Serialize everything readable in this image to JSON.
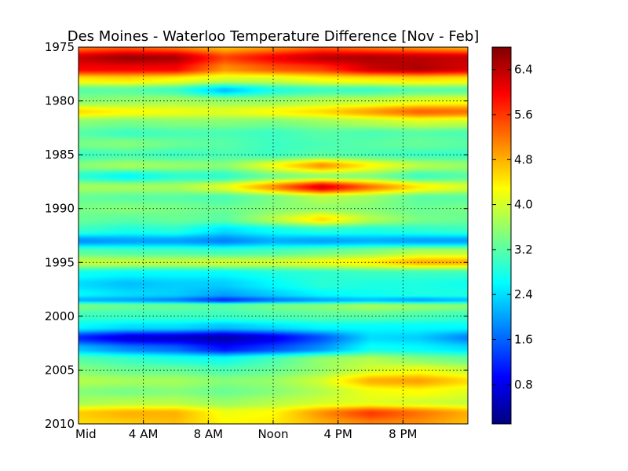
{
  "chart_data": {
    "type": "heatmap",
    "title": "Des Moines - Waterloo Temperature Difference [Nov - Feb]",
    "xlabel": "",
    "ylabel": "",
    "x_ticks": [
      "Mid",
      "4 AM",
      "8 AM",
      "Noon",
      "4 PM",
      "8 PM"
    ],
    "x_tick_hours": [
      0,
      4,
      8,
      12,
      16,
      20
    ],
    "x_range_hours": [
      0,
      24
    ],
    "y_ticks": [
      "1975",
      "1980",
      "1985",
      "1990",
      "1995",
      "2000",
      "2005",
      "2010"
    ],
    "y_range": [
      1975,
      2010
    ],
    "y_inverted": true,
    "grid": true,
    "colormap": "jet",
    "colorbar": {
      "ticks": [
        "0.8",
        "1.6",
        "2.4",
        "3.2",
        "4.0",
        "4.8",
        "5.6",
        "6.4"
      ],
      "range": [
        0.1,
        6.8
      ]
    },
    "colors": [
      "#00007f",
      "#0000ff",
      "#007fff",
      "#00ffff",
      "#7fff7f",
      "#ffff00",
      "#ff7f00",
      "#ff0000",
      "#7f0000"
    ],
    "hour_grid": [
      0,
      3,
      6,
      9,
      12,
      15,
      18,
      21,
      24
    ],
    "rows": [
      {
        "year": 1975.0,
        "values": [
          5.2,
          5.4,
          5.2,
          4.7,
          5.0,
          5.4,
          5.2,
          5.0,
          4.8
        ]
      },
      {
        "year": 1976.0,
        "values": [
          6.3,
          6.6,
          6.5,
          5.5,
          6.0,
          6.4,
          6.5,
          6.4,
          6.3
        ]
      },
      {
        "year": 1977.0,
        "values": [
          6.0,
          6.0,
          6.0,
          5.0,
          5.4,
          5.6,
          6.3,
          6.5,
          6.2
        ]
      },
      {
        "year": 1978.0,
        "values": [
          4.4,
          4.5,
          4.3,
          4.0,
          4.0,
          4.3,
          4.4,
          4.5,
          4.4
        ]
      },
      {
        "year": 1979.0,
        "values": [
          3.2,
          3.2,
          3.0,
          2.2,
          2.8,
          3.0,
          3.0,
          3.2,
          3.2
        ]
      },
      {
        "year": 1980.0,
        "values": [
          3.5,
          3.6,
          3.7,
          3.6,
          3.6,
          3.8,
          3.9,
          4.1,
          4.2
        ]
      },
      {
        "year": 1981.0,
        "values": [
          4.5,
          4.3,
          4.2,
          4.1,
          4.3,
          4.5,
          4.9,
          5.3,
          5.2
        ]
      },
      {
        "year": 1982.0,
        "values": [
          3.5,
          3.4,
          3.5,
          3.5,
          3.4,
          3.6,
          3.8,
          4.0,
          3.9
        ]
      },
      {
        "year": 1983.0,
        "values": [
          3.2,
          3.0,
          3.1,
          3.1,
          3.0,
          3.2,
          3.1,
          3.2,
          3.1
        ]
      },
      {
        "year": 1984.0,
        "values": [
          3.4,
          3.5,
          3.3,
          3.2,
          3.0,
          3.1,
          3.2,
          3.3,
          3.2
        ]
      },
      {
        "year": 1985.0,
        "values": [
          3.0,
          3.1,
          3.0,
          3.1,
          3.0,
          3.2,
          3.1,
          3.0,
          3.0
        ]
      },
      {
        "year": 1986.0,
        "values": [
          3.5,
          3.7,
          3.6,
          3.5,
          4.2,
          5.0,
          4.3,
          3.8,
          3.6
        ]
      },
      {
        "year": 1987.0,
        "values": [
          2.9,
          2.6,
          2.9,
          2.9,
          3.4,
          3.6,
          3.5,
          3.0,
          3.2
        ]
      },
      {
        "year": 1988.0,
        "values": [
          3.7,
          3.7,
          3.7,
          4.1,
          5.0,
          6.2,
          5.2,
          4.4,
          4.0
        ]
      },
      {
        "year": 1989.0,
        "values": [
          3.3,
          3.2,
          3.2,
          3.1,
          3.4,
          3.8,
          3.6,
          3.2,
          3.2
        ]
      },
      {
        "year": 1990.0,
        "values": [
          3.4,
          3.5,
          3.4,
          3.3,
          3.5,
          3.6,
          3.5,
          3.3,
          3.4
        ]
      },
      {
        "year": 1991.0,
        "values": [
          3.3,
          3.2,
          3.3,
          3.2,
          3.8,
          4.5,
          3.8,
          3.4,
          3.3
        ]
      },
      {
        "year": 1992.0,
        "values": [
          3.0,
          2.8,
          2.9,
          2.4,
          2.7,
          2.9,
          2.8,
          2.9,
          3.0
        ]
      },
      {
        "year": 1993.0,
        "values": [
          1.9,
          2.0,
          2.0,
          1.8,
          2.1,
          2.0,
          2.1,
          2.0,
          2.0
        ]
      },
      {
        "year": 1994.0,
        "values": [
          3.2,
          3.1,
          3.1,
          3.0,
          3.1,
          3.3,
          3.5,
          3.8,
          3.8
        ]
      },
      {
        "year": 1995.0,
        "values": [
          3.9,
          3.9,
          3.9,
          4.0,
          4.0,
          4.2,
          4.4,
          4.8,
          4.8
        ]
      },
      {
        "year": 1996.0,
        "values": [
          2.7,
          2.6,
          2.6,
          2.6,
          2.8,
          2.9,
          3.0,
          3.0,
          3.0
        ]
      },
      {
        "year": 1997.0,
        "values": [
          2.4,
          2.2,
          2.3,
          2.3,
          2.6,
          2.9,
          2.8,
          2.8,
          2.7
        ]
      },
      {
        "year": 1998.0,
        "values": [
          2.6,
          2.4,
          2.3,
          2.0,
          2.3,
          2.6,
          2.7,
          2.8,
          2.8
        ]
      },
      {
        "year": 1998.5,
        "values": [
          2.1,
          2.0,
          1.8,
          1.2,
          1.7,
          2.0,
          2.2,
          2.0,
          2.2
        ]
      },
      {
        "year": 1999.0,
        "values": [
          3.4,
          3.3,
          3.3,
          3.2,
          3.4,
          3.5,
          3.7,
          3.6,
          3.5
        ]
      },
      {
        "year": 2000.0,
        "values": [
          3.0,
          3.0,
          3.0,
          3.0,
          3.1,
          3.2,
          3.2,
          3.1,
          3.0
        ]
      },
      {
        "year": 2001.0,
        "values": [
          2.6,
          2.4,
          2.4,
          2.2,
          2.4,
          2.6,
          2.6,
          2.6,
          2.6
        ]
      },
      {
        "year": 2002.0,
        "values": [
          1.2,
          0.7,
          0.6,
          0.4,
          0.8,
          1.5,
          2.4,
          2.3,
          1.8
        ]
      },
      {
        "year": 2003.0,
        "values": [
          2.2,
          1.8,
          1.6,
          1.0,
          1.4,
          1.9,
          2.7,
          2.6,
          2.4
        ]
      },
      {
        "year": 2004.0,
        "values": [
          3.2,
          3.0,
          2.8,
          2.7,
          3.1,
          3.6,
          3.8,
          3.5,
          3.3
        ]
      },
      {
        "year": 2005.0,
        "values": [
          3.5,
          3.3,
          3.3,
          3.1,
          3.3,
          3.6,
          4.0,
          4.2,
          3.9
        ]
      },
      {
        "year": 2006.0,
        "values": [
          3.8,
          3.7,
          3.7,
          3.5,
          3.6,
          4.0,
          4.8,
          4.9,
          4.5
        ]
      },
      {
        "year": 2007.0,
        "values": [
          3.5,
          3.4,
          3.5,
          3.3,
          3.5,
          3.8,
          4.2,
          4.3,
          4.1
        ]
      },
      {
        "year": 2008.0,
        "values": [
          3.7,
          3.8,
          3.8,
          3.6,
          3.8,
          4.0,
          4.1,
          4.0,
          3.9
        ]
      },
      {
        "year": 2009.0,
        "values": [
          4.6,
          4.8,
          4.8,
          4.2,
          4.3,
          5.0,
          5.6,
          5.2,
          4.8
        ]
      },
      {
        "year": 2010.0,
        "values": [
          4.5,
          4.6,
          4.7,
          4.3,
          4.4,
          4.8,
          5.1,
          5.0,
          4.7
        ]
      }
    ]
  }
}
